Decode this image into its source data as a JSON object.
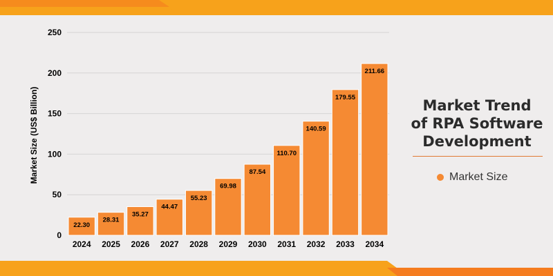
{
  "colors": {
    "background": "#efeded",
    "bar": "#f58a33",
    "bar_stroke": "#ffffff",
    "accent_band": "#f7a21b",
    "accent_band_dark": "#f57c1f",
    "axis_text": "#000000",
    "title_text": "#2b2b2b"
  },
  "side_title": {
    "line1": "Market Trend",
    "line2": "of RPA Software",
    "line3": "Development"
  },
  "legend": {
    "label": "Market Size"
  },
  "chart_data": {
    "type": "bar",
    "categories": [
      "2024",
      "2025",
      "2026",
      "2027",
      "2028",
      "2029",
      "2030",
      "2031",
      "2032",
      "2033",
      "2034"
    ],
    "series": [
      {
        "name": "Market Size",
        "values": [
          22.3,
          28.31,
          35.27,
          44.47,
          55.23,
          69.98,
          87.54,
          110.7,
          140.59,
          179.55,
          211.66
        ],
        "labels": [
          "22.30",
          "28.31",
          "35.27",
          "44.47",
          "55.23",
          "69.98",
          "87.54",
          "110.70",
          "140.59",
          "179.55",
          "211.66"
        ]
      }
    ],
    "ylabel": "Market Size (US$ Billion)",
    "xlabel": "",
    "ylim": [
      0,
      250
    ],
    "yticks": [
      0,
      50,
      100,
      150,
      200,
      250
    ],
    "grid": true,
    "legend_position": "right"
  }
}
